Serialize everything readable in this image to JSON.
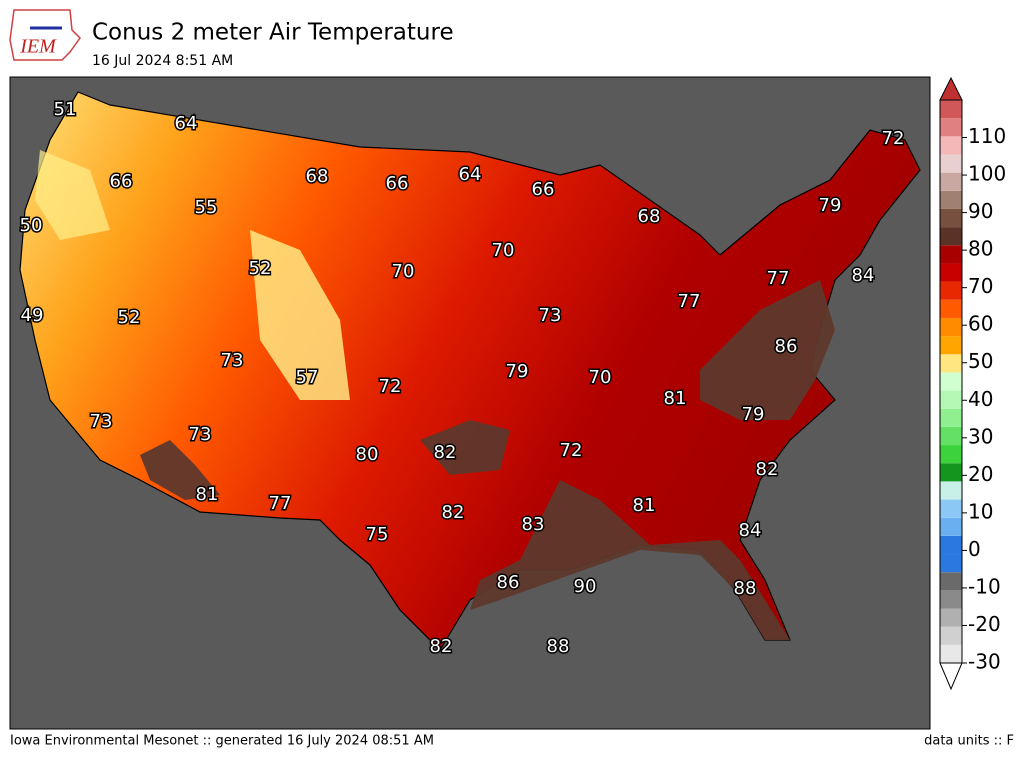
{
  "header": {
    "logo": "IEM",
    "title": "Conus 2 meter Air Temperature",
    "subtitle": "16 Jul 2024 8:51 AM"
  },
  "map": {
    "labels": [
      51,
      64,
      66,
      68,
      66,
      64,
      66,
      72,
      50,
      55,
      68,
      79,
      52,
      70,
      70,
      77,
      84,
      49,
      52,
      73,
      77,
      86,
      73,
      57,
      72,
      79,
      70,
      81,
      73,
      73,
      79,
      80,
      82,
      72,
      82,
      81,
      77,
      82,
      83,
      81,
      84,
      75,
      86,
      90,
      88,
      82,
      88
    ]
  },
  "colorbar": {
    "lim": [
      -30,
      120
    ],
    "ticks": [
      -30,
      -20,
      -10,
      0,
      10,
      20,
      30,
      40,
      50,
      60,
      70,
      80,
      90,
      100,
      110
    ]
  },
  "footer": {
    "left": "Iowa Environmental Mesonet :: generated 16 July 2024 08:51 AM",
    "right": "data units :: F"
  }
}
